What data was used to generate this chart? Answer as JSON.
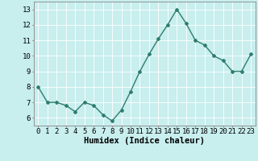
{
  "x": [
    0,
    1,
    2,
    3,
    4,
    5,
    6,
    7,
    8,
    9,
    10,
    11,
    12,
    13,
    14,
    15,
    16,
    17,
    18,
    19,
    20,
    21,
    22,
    23
  ],
  "y": [
    8.0,
    7.0,
    7.0,
    6.8,
    6.4,
    7.0,
    6.8,
    6.2,
    5.8,
    6.5,
    7.7,
    9.0,
    10.1,
    11.1,
    12.0,
    13.0,
    12.1,
    11.0,
    10.7,
    10.0,
    9.7,
    9.0,
    9.0,
    10.1
  ],
  "line_color": "#2e7d6e",
  "bg_color": "#c8eeee",
  "grid_color": "#ffffff",
  "xlabel": "Humidex (Indice chaleur)",
  "xlim": [
    -0.5,
    23.5
  ],
  "ylim": [
    5.5,
    13.5
  ],
  "yticks": [
    6,
    7,
    8,
    9,
    10,
    11,
    12,
    13
  ],
  "xtick_labels": [
    "0",
    "1",
    "2",
    "3",
    "4",
    "5",
    "6",
    "7",
    "8",
    "9",
    "10",
    "11",
    "12",
    "13",
    "14",
    "15",
    "16",
    "17",
    "18",
    "19",
    "20",
    "21",
    "22",
    "23"
  ],
  "marker": "D",
  "marker_size": 2.0,
  "line_width": 1.0,
  "xlabel_fontsize": 7.5,
  "tick_fontsize": 6.5
}
